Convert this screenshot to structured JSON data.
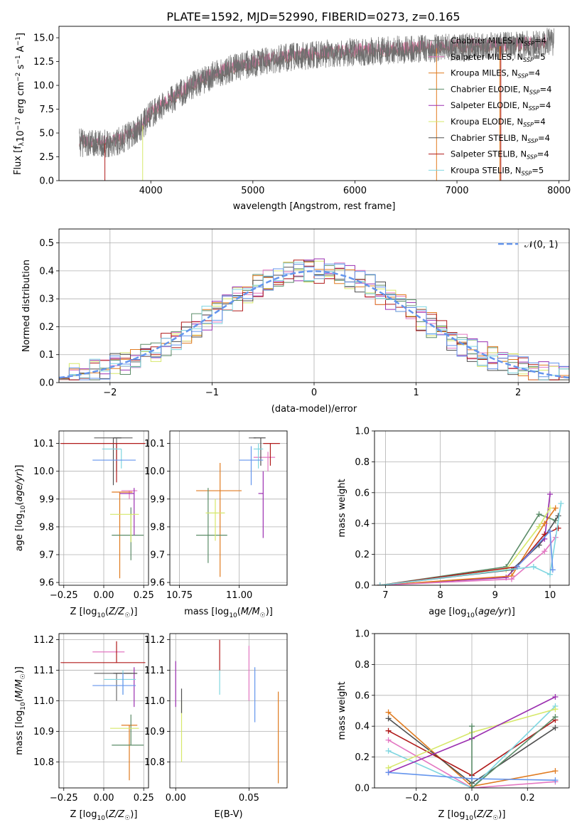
{
  "title": "PLATE=1592, MJD=52990, FIBERID=0273, z=0.165",
  "colors": {
    "Chabrier MILES": "#6f6f6f",
    "Salpeter MILES": "#e377c2",
    "Kroupa MILES": "#e07b20",
    "Chabrier ELODIE": "#5b8c68",
    "Salpeter ELODIE": "#9b2fb0",
    "Kroupa ELODIE": "#d6e86a",
    "Chabrier STELIB": "#505050",
    "Salpeter STELIB": "#b01a1a",
    "Kroupa STELIB": "#7fd6e0",
    "gaussian": "#6495ed",
    "Kroupa STELIB alt": "#6495ed"
  },
  "chart_data": [
    {
      "type": "line",
      "id": "spectrum",
      "title": "PLATE=1592, MJD=52990, FIBERID=0273, z=0.165",
      "xlabel": "wavelength [Angstrom, rest frame]",
      "ylabel": "Flux [f",
      "ylabel_full": "Flux [fλ10⁻¹⁷ erg cm⁻² s⁻¹ A⁻¹]",
      "xlim": [
        3100,
        8100
      ],
      "ylim": [
        0,
        16.2
      ],
      "xticks": [
        "4000",
        "5000",
        "6000",
        "7000",
        "8000"
      ],
      "yticks": [
        "0.0",
        "2.5",
        "5.0",
        "7.5",
        "10.0",
        "12.5",
        "15.0"
      ],
      "continuum_x": [
        3300,
        3500,
        3700,
        3900,
        4000,
        4200,
        4400,
        4600,
        4800,
        5000,
        5200,
        5400,
        5600,
        5800,
        6000,
        6200,
        6400,
        6600,
        6800,
        7000,
        7200,
        7400,
        7600,
        7800,
        7900
      ],
      "continuum_y": [
        4.0,
        3.8,
        4.2,
        5.5,
        7.0,
        8.5,
        10.0,
        11.0,
        11.8,
        12.3,
        12.7,
        13.0,
        13.2,
        13.4,
        13.5,
        13.6,
        13.7,
        13.8,
        13.9,
        14.0,
        14.1,
        14.1,
        14.2,
        14.3,
        14.6
      ],
      "legend": [
        {
          "label": "Chabrier MILES, N",
          "n": "4",
          "key": "Chabrier MILES"
        },
        {
          "label": "Salpeter MILES, N",
          "n": "5",
          "key": "Salpeter MILES"
        },
        {
          "label": "Kroupa MILES, N",
          "n": "4",
          "key": "Kroupa MILES"
        },
        {
          "label": "Chabrier ELODIE, N",
          "n": "4",
          "key": "Chabrier ELODIE"
        },
        {
          "label": "Salpeter ELODIE, N",
          "n": "4",
          "key": "Salpeter ELODIE"
        },
        {
          "label": "Kroupa ELODIE, N",
          "n": "4",
          "key": "Kroupa ELODIE"
        },
        {
          "label": "Chabrier STELIB, N",
          "n": "4",
          "key": "Chabrier STELIB"
        },
        {
          "label": "Salpeter STELIB, N",
          "n": "4",
          "key": "Salpeter STELIB"
        },
        {
          "label": "Kroupa STELIB, N",
          "n": "5",
          "key": "Kroupa STELIB"
        }
      ],
      "legend_sub": "SSP",
      "legend_placement": "right",
      "grid": false
    },
    {
      "type": "bar",
      "id": "residuals",
      "xlabel": "(data-model)/error",
      "ylabel": "Normed distribution",
      "xlim": [
        -2.5,
        2.5
      ],
      "ylim": [
        0,
        0.55
      ],
      "xticks": [
        "−2",
        "−1",
        "0",
        "1",
        "2"
      ],
      "yticks": [
        "0.0",
        "0.1",
        "0.2",
        "0.3",
        "0.4",
        "0.5"
      ],
      "legend": "𝒩(0, 1)",
      "legend_placement": "top-right",
      "grid": true,
      "bins": [
        -2.5,
        -2.4,
        -2.3,
        -2.2,
        -2.1,
        -2.0,
        -1.9,
        -1.8,
        -1.7,
        -1.6,
        -1.5,
        -1.4,
        -1.3,
        -1.2,
        -1.1,
        -1.0,
        -0.9,
        -0.8,
        -0.7,
        -0.6,
        -0.5,
        -0.4,
        -0.3,
        -0.2,
        -0.1,
        0.0,
        0.1,
        0.2,
        0.3,
        0.4,
        0.5,
        0.6,
        0.7,
        0.8,
        0.9,
        1.0,
        1.1,
        1.2,
        1.3,
        1.4,
        1.5,
        1.6,
        1.7,
        1.8,
        1.9,
        2.0,
        2.1,
        2.2,
        2.3,
        2.4
      ]
    },
    {
      "type": "scatter",
      "id": "age_vs_Z",
      "xlabel": "Z [log",
      "ylabel": "age  [log",
      "xlabel_full": "Z [log₁₀(Z/Z☉)]",
      "ylabel_full": "age  [log₁₀(age/yr)]",
      "xlim": [
        -0.28,
        0.28
      ],
      "ylim": [
        9.59,
        10.145
      ],
      "xticks": [
        "−0.25",
        "0.00",
        "0.25"
      ],
      "yticks": [
        "9.6",
        "9.7",
        "9.8",
        "9.9",
        "10.0",
        "10.1"
      ],
      "grid": true,
      "points": [
        {
          "key": "Chabrier MILES",
          "x": 0.08,
          "y": 10.12,
          "xerr": [
            0.14,
            0.1
          ],
          "yerr": [
            0.12,
            0.0
          ]
        },
        {
          "key": "Salpeter MILES",
          "x": 0.16,
          "y": 9.93,
          "xerr": [
            0.05,
            0.05
          ],
          "yerr": [
            0.03,
            0.0
          ]
        },
        {
          "key": "Kroupa MILES",
          "x": 0.1,
          "y": 9.925,
          "xerr": [
            0.05,
            0.08
          ],
          "yerr": [
            0.31,
            0.0
          ]
        },
        {
          "key": "Chabrier ELODIE",
          "x": 0.17,
          "y": 9.77,
          "xerr": [
            0.12,
            0.08
          ],
          "yerr": [
            0.09,
            0.1
          ]
        },
        {
          "key": "Salpeter ELODIE",
          "x": 0.19,
          "y": 9.92,
          "xerr": [
            0.09,
            0.0
          ],
          "yerr": [
            0.15,
            0.02
          ]
        },
        {
          "key": "Kroupa ELODIE",
          "x": 0.17,
          "y": 9.845,
          "xerr": [
            0.13,
            0.05
          ],
          "yerr": [
            0.1,
            0.0
          ]
        },
        {
          "key": "Chabrier STELIB",
          "x": 0.06,
          "y": 10.12,
          "xerr": [
            0.0,
            0.05
          ],
          "yerr": [
            0.17,
            0.0
          ]
        },
        {
          "key": "Salpeter STELIB",
          "x": 0.08,
          "y": 10.1,
          "xerr": [
            0.35,
            0.18
          ],
          "yerr": [
            0.14,
            0.0
          ]
        },
        {
          "key": "Kroupa STELIB",
          "x": 0.11,
          "y": 10.08,
          "xerr": [
            0.12,
            0.0
          ],
          "yerr": [
            0.07,
            0.0
          ]
        },
        {
          "key": "Kroupa STELIB alt",
          "x": 0.12,
          "y": 10.04,
          "xerr": [
            0.19,
            0.08
          ],
          "yerr": [
            0.0,
            0.0
          ]
        }
      ]
    },
    {
      "type": "scatter",
      "id": "age_vs_mass",
      "xlabel": "mass [log",
      "xlabel_full": "mass [log₁₀(M/M☉)]",
      "xlim": [
        10.71,
        11.2
      ],
      "ylim": [
        9.59,
        10.145
      ],
      "xticks": [
        "10.75",
        "11.00"
      ],
      "yticks": [
        "9.6",
        "9.7",
        "9.8",
        "9.9",
        "10.0",
        "10.1"
      ],
      "grid": true,
      "points": [
        {
          "key": "Chabrier MILES",
          "x": 11.07,
          "y": 10.12,
          "xerr": [
            0.03,
            0.0
          ],
          "yerr": [
            0.0,
            0.0
          ]
        },
        {
          "key": "Salpeter MILES",
          "x": 11.12,
          "y": 10.05,
          "xerr": [
            0.06,
            0.03
          ],
          "yerr": [
            0.05,
            0.02
          ]
        },
        {
          "key": "Kroupa MILES",
          "x": 10.92,
          "y": 9.93,
          "xerr": [
            0.1,
            0.09
          ],
          "yerr": [
            0.31,
            0.1
          ]
        },
        {
          "key": "Chabrier ELODIE",
          "x": 10.87,
          "y": 9.77,
          "xerr": [
            0.05,
            0.08
          ],
          "yerr": [
            0.1,
            0.17
          ]
        },
        {
          "key": "Salpeter ELODIE",
          "x": 11.1,
          "y": 9.92,
          "xerr": [
            0.02,
            0.0
          ],
          "yerr": [
            0.16,
            0.08
          ]
        },
        {
          "key": "Kroupa ELODIE",
          "x": 10.9,
          "y": 9.85,
          "xerr": [
            0.04,
            0.04
          ],
          "yerr": [
            0.1,
            0.05
          ]
        },
        {
          "key": "Chabrier STELIB",
          "x": 11.09,
          "y": 10.12,
          "xerr": [
            0.03,
            0.02
          ],
          "yerr": [
            0.1,
            0.0
          ]
        },
        {
          "key": "Salpeter STELIB",
          "x": 11.13,
          "y": 10.1,
          "xerr": [
            0.03,
            0.04
          ],
          "yerr": [
            0.08,
            0.0
          ]
        },
        {
          "key": "Kroupa STELIB",
          "x": 11.08,
          "y": 10.08,
          "xerr": [
            0.02,
            0.02
          ],
          "yerr": [
            0.07,
            0.02
          ]
        },
        {
          "key": "Kroupa STELIB alt",
          "x": 11.05,
          "y": 10.04,
          "xerr": [
            0.05,
            0.05
          ],
          "yerr": [
            0.09,
            0.05
          ]
        }
      ]
    },
    {
      "type": "line",
      "id": "weight_vs_age",
      "xlabel": "age  [log",
      "xlabel_full": "age  [log₁₀(age/yr)]",
      "ylabel": "mass weight",
      "xlim": [
        6.8,
        10.35
      ],
      "ylim": [
        0,
        1
      ],
      "xticks": [
        "7",
        "8",
        "9",
        "10"
      ],
      "yticks": [
        "0.0",
        "0.2",
        "0.4",
        "0.6",
        "0.8",
        "1.0"
      ],
      "grid": true,
      "series": [
        {
          "key": "Chabrier ELODIE",
          "x": [
            6.9,
            9.2,
            9.8,
            10.1
          ],
          "y": [
            0.0,
            0.12,
            0.46,
            0.42
          ]
        },
        {
          "key": "Salpeter ELODIE",
          "x": [
            6.9,
            9.2,
            9.9,
            10.0
          ],
          "y": [
            0.0,
            0.05,
            0.3,
            0.59
          ]
        },
        {
          "key": "Kroupa ELODIE",
          "x": [
            6.9,
            9.2,
            9.8,
            10.0
          ],
          "y": [
            0.0,
            0.1,
            0.38,
            0.5
          ]
        },
        {
          "key": "Kroupa MILES",
          "x": [
            6.9,
            9.3,
            9.9,
            10.1
          ],
          "y": [
            0.0,
            0.06,
            0.4,
            0.5
          ]
        },
        {
          "key": "Salpeter MILES",
          "x": [
            6.9,
            9.3,
            9.9,
            10.1
          ],
          "y": [
            0.0,
            0.04,
            0.22,
            0.31
          ]
        },
        {
          "key": "Chabrier STELIB",
          "x": [
            6.9,
            9.3,
            9.8,
            10.15
          ],
          "y": [
            0.0,
            0.1,
            0.26,
            0.45
          ]
        },
        {
          "key": "Salpeter STELIB",
          "x": [
            6.9,
            9.4,
            9.9,
            10.15
          ],
          "y": [
            0.0,
            0.12,
            0.33,
            0.37
          ]
        },
        {
          "key": "Kroupa STELIB",
          "x": [
            6.9,
            9.7,
            10.0,
            10.2
          ],
          "y": [
            0.0,
            0.12,
            0.07,
            0.53
          ]
        },
        {
          "key": "Kroupa STELIB alt",
          "x": [
            9.4,
            10.0,
            10.05
          ],
          "y": [
            0.12,
            0.35,
            0.1
          ]
        }
      ]
    },
    {
      "type": "scatter",
      "id": "mass_vs_Z",
      "xlabel": "Z [log",
      "xlabel_full": "Z [log₁₀(Z/Z☉)]",
      "ylabel": "mass [log",
      "ylabel_full": "mass [log₁₀(M/M☉)]",
      "xlim": [
        -0.28,
        0.28
      ],
      "ylim": [
        10.715,
        11.22
      ],
      "xticks": [
        "−0.25",
        "0.00",
        "0.25"
      ],
      "yticks": [
        "10.8",
        "10.9",
        "11.0",
        "11.1",
        "11.2"
      ],
      "grid": true,
      "points": [
        {
          "key": "Chabrier MILES",
          "x": 0.08,
          "y": 11.09,
          "xerr": [
            0.14,
            0.1
          ],
          "yerr": [
            0.09,
            0.0
          ]
        },
        {
          "key": "Salpeter MILES",
          "x": 0.06,
          "y": 11.16,
          "xerr": [
            0.13,
            0.07
          ],
          "yerr": [
            0.0,
            0.0
          ]
        },
        {
          "key": "Kroupa MILES",
          "x": 0.16,
          "y": 10.92,
          "xerr": [
            0.05,
            0.05
          ],
          "yerr": [
            0.18,
            0.0
          ]
        },
        {
          "key": "Chabrier ELODIE",
          "x": 0.17,
          "y": 10.855,
          "xerr": [
            0.12,
            0.08
          ],
          "yerr": [
            0.0,
            0.1
          ]
        },
        {
          "key": "Salpeter ELODIE",
          "x": 0.19,
          "y": 11.08,
          "xerr": [
            0.0,
            0.0
          ],
          "yerr": [
            0.1,
            0.03
          ]
        },
        {
          "key": "Kroupa ELODIE",
          "x": 0.17,
          "y": 10.91,
          "xerr": [
            0.13,
            0.05
          ],
          "yerr": [
            0.0,
            0.0
          ]
        },
        {
          "key": "Chabrier STELIB",
          "x": 0.06,
          "y": 11.09,
          "xerr": [
            0.0,
            0.15
          ],
          "yerr": [
            0.0,
            0.0
          ]
        },
        {
          "key": "Salpeter STELIB",
          "x": 0.08,
          "y": 11.125,
          "xerr": [
            0.35,
            0.18
          ],
          "yerr": [
            0.0,
            0.07
          ]
        },
        {
          "key": "Kroupa STELIB",
          "x": 0.12,
          "y": 11.07,
          "xerr": [
            0.12,
            0.08
          ],
          "yerr": [
            0.05,
            0.03
          ]
        },
        {
          "key": "Kroupa STELIB alt",
          "x": 0.12,
          "y": 11.05,
          "xerr": [
            0.19,
            0.08
          ],
          "yerr": [
            0.03,
            0.04
          ]
        }
      ]
    },
    {
      "type": "scatter",
      "id": "mass_vs_ebv",
      "xlabel": "E(B-V)",
      "xlim": [
        -0.004,
        0.076
      ],
      "ylim": [
        10.715,
        11.22
      ],
      "xticks": [
        "0.00",
        "0.05"
      ],
      "yticks": [
        "10.8",
        "10.9",
        "11.0",
        "11.1",
        "11.2"
      ],
      "grid": true,
      "points": [
        {
          "key": "Salpeter ELODIE",
          "x": 0.0,
          "y": 11.06,
          "yerr": [
            0.08,
            0.07
          ]
        },
        {
          "key": "Kroupa ELODIE",
          "x": 0.004,
          "y": 10.9,
          "yerr": [
            0.1,
            0.1
          ]
        },
        {
          "key": "Chabrier STELIB",
          "x": 0.004,
          "y": 11.0,
          "yerr": [
            0.04,
            0.04
          ]
        },
        {
          "key": "Salpeter STELIB",
          "x": 0.03,
          "y": 11.15,
          "yerr": [
            0.05,
            0.05
          ]
        },
        {
          "key": "Kroupa STELIB",
          "x": 0.03,
          "y": 11.08,
          "yerr": [
            0.06,
            0.02
          ]
        },
        {
          "key": "Salpeter MILES",
          "x": 0.05,
          "y": 11.07,
          "yerr": [
            0.07,
            0.11
          ]
        },
        {
          "key": "Kroupa STELIB alt",
          "x": 0.054,
          "y": 11.02,
          "yerr": [
            0.09,
            0.09
          ]
        },
        {
          "key": "Kroupa MILES",
          "x": 0.07,
          "y": 10.88,
          "yerr": [
            0.15,
            0.15
          ]
        }
      ]
    },
    {
      "type": "line",
      "id": "weight_vs_Z",
      "xlabel": "Z [log",
      "xlabel_full": "Z [log₁₀(Z/Z☉)]",
      "ylabel": "mass weight",
      "xlim": [
        -0.35,
        0.35
      ],
      "ylim": [
        0,
        1
      ],
      "xticks": [
        "−0.2",
        "0.0",
        "0.2"
      ],
      "yticks": [
        "0.0",
        "0.2",
        "0.4",
        "0.6",
        "0.8",
        "1.0"
      ],
      "grid": true,
      "series": [
        {
          "key": "Kroupa MILES",
          "x": [
            -0.3,
            0.0,
            0.3
          ],
          "y": [
            0.49,
            0.01,
            0.11
          ]
        },
        {
          "key": "Chabrier STELIB",
          "x": [
            -0.3,
            0.0,
            0.3
          ],
          "y": [
            0.45,
            0.03,
            0.39
          ]
        },
        {
          "key": "Salpeter STELIB",
          "x": [
            -0.3,
            0.0,
            0.3
          ],
          "y": [
            0.37,
            0.08,
            0.44
          ]
        },
        {
          "key": "Salpeter MILES",
          "x": [
            -0.3,
            0.0,
            0.3
          ],
          "y": [
            0.31,
            0.0,
            0.04
          ]
        },
        {
          "key": "Kroupa STELIB",
          "x": [
            -0.3,
            0.0,
            0.3
          ],
          "y": [
            0.24,
            0.0,
            0.53
          ]
        },
        {
          "key": "Kroupa ELODIE",
          "x": [
            -0.3,
            0.0,
            0.3
          ],
          "y": [
            0.13,
            0.36,
            0.51
          ]
        },
        {
          "key": "Salpeter ELODIE",
          "x": [
            -0.3,
            0.0,
            0.3
          ],
          "y": [
            0.1,
            0.32,
            0.59
          ]
        },
        {
          "key": "Chabrier ELODIE",
          "x": [
            0.0,
            0.0,
            0.3
          ],
          "y": [
            0.4,
            0.0,
            0.46
          ]
        },
        {
          "key": "Kroupa STELIB alt",
          "x": [
            -0.3,
            0.0,
            0.3
          ],
          "y": [
            0.1,
            0.06,
            0.05
          ]
        }
      ]
    }
  ]
}
